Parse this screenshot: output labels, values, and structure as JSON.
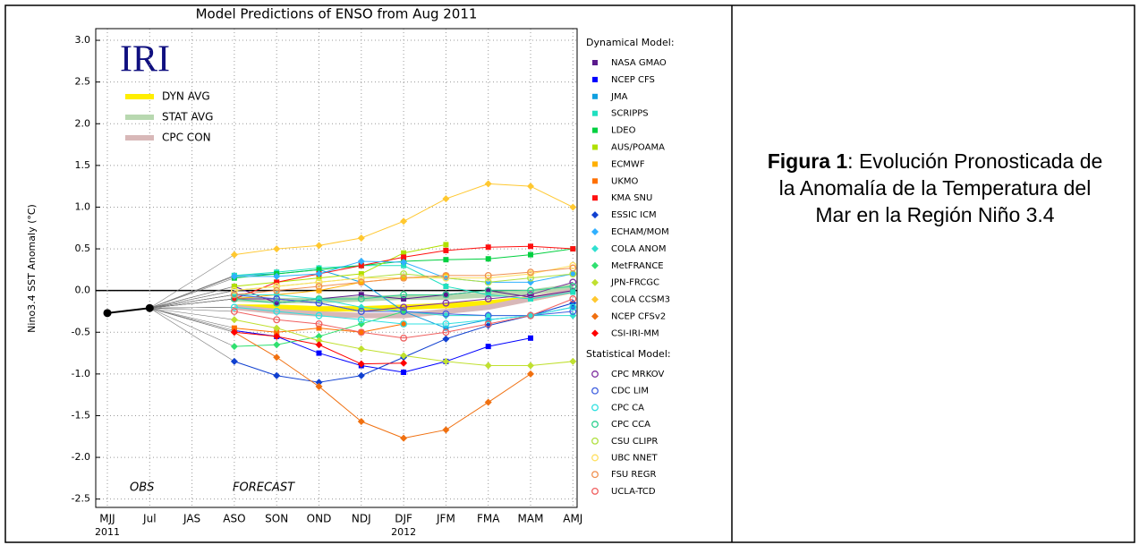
{
  "chart_data": {
    "type": "line",
    "title": "Model Predictions of ENSO from Aug 2011",
    "y_label": "Nino3.4 SST Anomaly (°C)",
    "logo": "IRI",
    "annotations": [
      "OBS",
      "FORECAST"
    ],
    "categories": [
      "MJJ",
      "Jul",
      "JAS",
      "ASO",
      "SON",
      "OND",
      "NDJ",
      "DJF",
      "JFM",
      "FMA",
      "MAM",
      "AMJ"
    ],
    "year_labels": [
      "2011",
      null,
      null,
      null,
      null,
      null,
      null,
      "2012",
      null,
      null,
      null,
      null
    ],
    "ylim": [
      -2.6,
      3.14
    ],
    "yticks": [
      {
        "value": 3,
        "label": "3.0"
      },
      2.5,
      {
        "value": 2,
        "label": "2.0"
      },
      1.5,
      {
        "value": 1,
        "label": "1.0"
      },
      0.5,
      {
        "value": 0,
        "label": "0.0"
      },
      -0.5,
      {
        "value": -1,
        "label": "-1.0"
      },
      -1.5,
      {
        "value": -2,
        "label": "-2.0"
      },
      -2.5
    ],
    "grid": true,
    "observed": {
      "color": "#000000",
      "values": [
        -0.27,
        -0.21,
        null,
        null,
        null,
        null,
        null,
        null,
        null,
        null,
        null,
        null
      ]
    },
    "averages": [
      {
        "name": "DYN AVG",
        "color": "#ffee00",
        "values": [
          null,
          null,
          null,
          -0.2,
          -0.2,
          -0.22,
          -0.22,
          -0.2,
          -0.18,
          -0.15,
          -0.1,
          0.0
        ]
      },
      {
        "name": "STAT AVG",
        "color": "#b8d8b0",
        "values": [
          null,
          null,
          null,
          -0.1,
          -0.12,
          -0.12,
          -0.1,
          -0.08,
          -0.08,
          -0.05,
          -0.02,
          0.05
        ]
      },
      {
        "name": "CPC CON",
        "color": "#d8b8b8",
        "values": [
          null,
          null,
          null,
          -0.2,
          -0.25,
          -0.28,
          -0.3,
          -0.3,
          -0.25,
          -0.2,
          -0.1,
          0.0
        ]
      }
    ],
    "dynamical": {
      "title": "Dynamical Model:",
      "series": [
        {
          "name": "NASA GMAO",
          "color": "#5a1a8c",
          "marker": "square",
          "values": [
            null,
            null,
            null,
            0.05,
            -0.15,
            -0.1,
            -0.05,
            -0.1,
            -0.05,
            0.0,
            -0.08,
            0.0
          ]
        },
        {
          "name": "NCEP CFS",
          "color": "#0000ff",
          "marker": "square",
          "values": [
            null,
            null,
            null,
            -0.48,
            -0.55,
            -0.75,
            -0.9,
            -0.98,
            -0.85,
            -0.67,
            -0.57,
            null
          ]
        },
        {
          "name": "JMA",
          "color": "#10a0e0",
          "marker": "square",
          "values": [
            null,
            null,
            null,
            0.18,
            0.2,
            0.25,
            0.1,
            -0.25,
            -0.45,
            -0.35,
            -0.3,
            -0.2
          ]
        },
        {
          "name": "SCRIPPS",
          "color": "#20e0c0",
          "marker": "square",
          "values": [
            null,
            null,
            null,
            0.18,
            0.22,
            0.27,
            0.3,
            0.3,
            0.05,
            -0.05,
            -0.1,
            -0.02
          ]
        },
        {
          "name": "LDEO",
          "color": "#00d040",
          "marker": "square",
          "values": [
            null,
            null,
            null,
            0.15,
            0.2,
            0.25,
            0.3,
            0.35,
            0.37,
            0.38,
            0.43,
            0.5
          ]
        },
        {
          "name": "AUS/POAMA",
          "color": "#b0e000",
          "marker": "square",
          "values": [
            null,
            null,
            null,
            0.05,
            0.1,
            0.15,
            0.2,
            0.45,
            0.55,
            null,
            null,
            null
          ]
        },
        {
          "name": "ECMWF",
          "color": "#ffb000",
          "marker": "square",
          "values": [
            null,
            null,
            null,
            -0.1,
            -0.05,
            0.0,
            0.1,
            0.15,
            0.18,
            null,
            null,
            null
          ]
        },
        {
          "name": "UKMO",
          "color": "#ff7000",
          "marker": "square",
          "values": [
            null,
            null,
            null,
            -0.45,
            -0.5,
            -0.45,
            -0.5,
            -0.4,
            null,
            null,
            null,
            null
          ]
        },
        {
          "name": "KMA SNU",
          "color": "#ff1010",
          "marker": "square",
          "values": [
            null,
            null,
            null,
            -0.1,
            0.1,
            0.2,
            0.3,
            0.4,
            0.48,
            0.52,
            0.53,
            0.5
          ]
        },
        {
          "name": "ESSIC ICM",
          "color": "#1040d0",
          "marker": "diamond",
          "values": [
            null,
            null,
            null,
            -0.85,
            -1.02,
            -1.1,
            -1.02,
            -0.8,
            -0.58,
            -0.42,
            -0.3,
            -0.15
          ]
        },
        {
          "name": "ECHAM/MOM",
          "color": "#30b0ff",
          "marker": "diamond",
          "values": [
            null,
            null,
            null,
            0.17,
            0.17,
            0.2,
            0.35,
            0.34,
            0.15,
            0.1,
            0.1,
            0.2
          ]
        },
        {
          "name": "COLA ANOM",
          "color": "#30e0d0",
          "marker": "diamond",
          "values": [
            null,
            null,
            null,
            -0.05,
            -0.05,
            -0.1,
            -0.2,
            -0.25,
            -0.3,
            -0.3,
            -0.3,
            -0.3
          ]
        },
        {
          "name": "MetFRANCE",
          "color": "#30e070",
          "marker": "diamond",
          "values": [
            null,
            null,
            null,
            -0.67,
            -0.65,
            -0.55,
            -0.4,
            -0.25,
            null,
            null,
            null,
            null
          ]
        },
        {
          "name": "JPN-FRCGC",
          "color": "#c0e030",
          "marker": "diamond",
          "values": [
            null,
            null,
            null,
            -0.35,
            -0.45,
            -0.6,
            -0.7,
            -0.78,
            -0.85,
            -0.9,
            -0.9,
            -0.85
          ]
        },
        {
          "name": "COLA CCSM3",
          "color": "#ffc830",
          "marker": "diamond",
          "values": [
            null,
            null,
            null,
            0.43,
            0.5,
            0.54,
            0.63,
            0.83,
            1.1,
            1.28,
            1.25,
            1.0
          ]
        },
        {
          "name": "NCEP CFSv2",
          "color": "#f07010",
          "marker": "diamond",
          "values": [
            null,
            null,
            null,
            -0.5,
            -0.8,
            -1.15,
            -1.57,
            -1.77,
            -1.67,
            -1.34,
            -1.0,
            null
          ]
        },
        {
          "name": "CSI-IRI-MM",
          "color": "#ff0000",
          "marker": "diamond",
          "values": [
            null,
            null,
            null,
            -0.5,
            -0.55,
            -0.65,
            -0.88,
            -0.87,
            null,
            null,
            null,
            null
          ]
        }
      ]
    },
    "statistical": {
      "title": "Statistical Model:",
      "series": [
        {
          "name": "CPC MRKOV",
          "color": "#8030a0",
          "marker": "circle",
          "values": [
            null,
            null,
            null,
            -0.1,
            -0.1,
            -0.15,
            -0.25,
            -0.2,
            -0.15,
            -0.1,
            -0.05,
            0.1
          ]
        },
        {
          "name": "CDC LIM",
          "color": "#4060e0",
          "marker": "circle",
          "values": [
            null,
            null,
            null,
            -0.05,
            -0.1,
            -0.15,
            -0.25,
            -0.25,
            -0.28,
            -0.3,
            -0.3,
            -0.25
          ]
        },
        {
          "name": "CPC CA",
          "color": "#30e0e0",
          "marker": "circle",
          "values": [
            null,
            null,
            null,
            -0.2,
            -0.25,
            -0.3,
            -0.35,
            -0.4,
            -0.4,
            -0.35,
            -0.3,
            -0.2
          ]
        },
        {
          "name": "CPC CCA",
          "color": "#30d090",
          "marker": "circle",
          "values": [
            null,
            null,
            null,
            -0.1,
            -0.15,
            -0.1,
            -0.1,
            -0.05,
            -0.05,
            0.0,
            0.0,
            0.05
          ]
        },
        {
          "name": "CSU CLIPR",
          "color": "#b0e040",
          "marker": "circle",
          "values": [
            null,
            null,
            null,
            0.0,
            0.05,
            0.1,
            0.15,
            0.2,
            0.15,
            0.1,
            0.15,
            0.2
          ]
        },
        {
          "name": "UBC NNET",
          "color": "#ffe060",
          "marker": "circle",
          "values": [
            null,
            null,
            null,
            0.0,
            0.05,
            0.1,
            0.15,
            0.15,
            0.15,
            0.15,
            0.2,
            0.3
          ]
        },
        {
          "name": "FSU REGR",
          "color": "#f09050",
          "marker": "circle",
          "values": [
            null,
            null,
            null,
            -0.05,
            0.0,
            0.05,
            0.1,
            0.15,
            0.18,
            0.18,
            0.22,
            0.27
          ]
        },
        {
          "name": "UCLA-TCD",
          "color": "#f06060",
          "marker": "circle",
          "values": [
            null,
            null,
            null,
            -0.25,
            -0.35,
            -0.4,
            -0.5,
            -0.57,
            -0.5,
            -0.4,
            -0.3,
            -0.1
          ]
        }
      ]
    }
  },
  "caption": {
    "label": "Figura 1",
    "text": ": Evolución Pronosticada de la Anomalía de la Temperatura del Mar en la Región Niño 3.4"
  }
}
